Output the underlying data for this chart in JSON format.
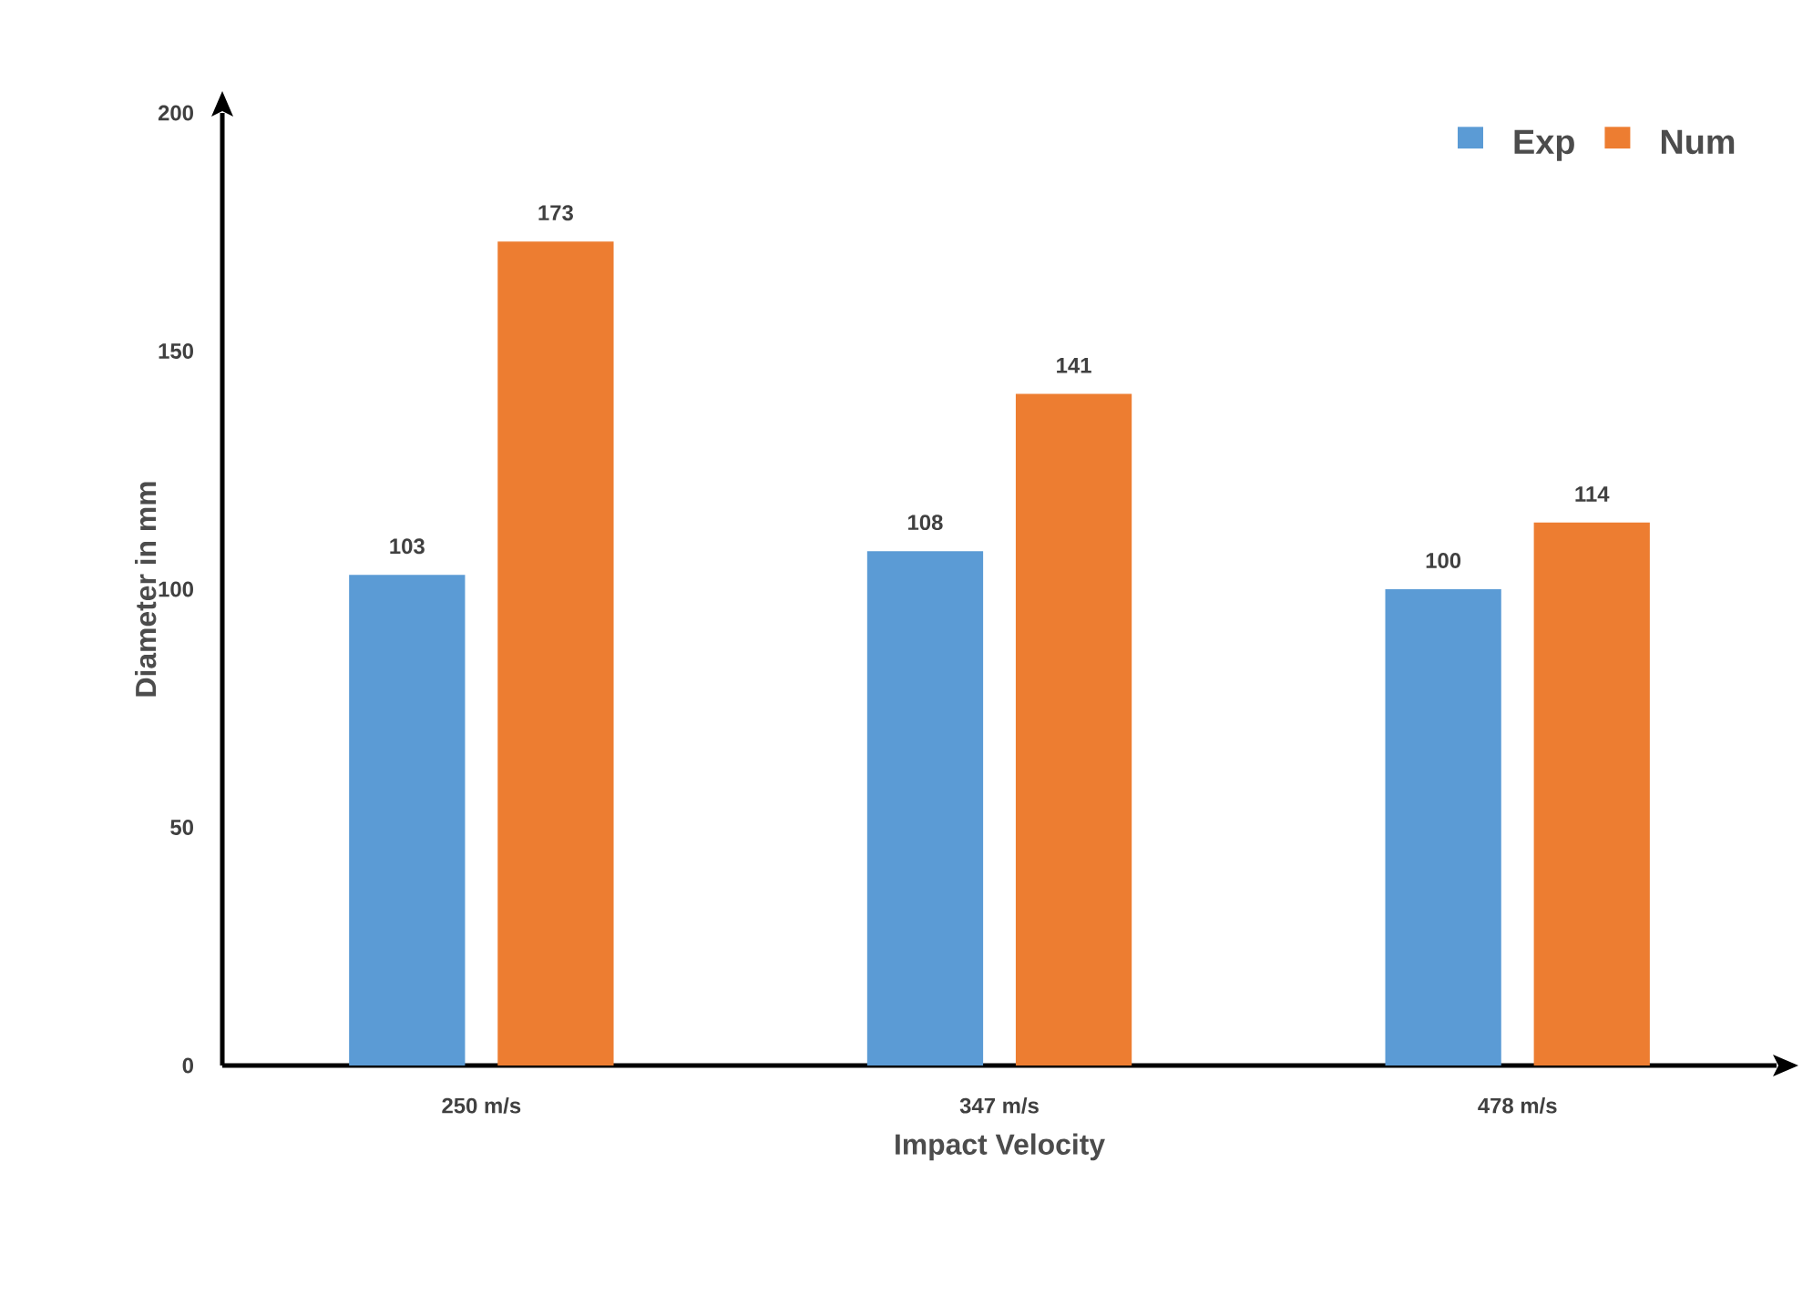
{
  "chart_data": {
    "type": "bar",
    "xlabel": "Impact Velocity",
    "ylabel": "Diameter in mm",
    "categories": [
      "250 m/s",
      "347 m/s",
      "478 m/s"
    ],
    "series": [
      {
        "name": "Exp",
        "color": "#5b9bd5",
        "values": [
          103,
          108,
          100
        ]
      },
      {
        "name": "Num",
        "color": "#ed7d31",
        "values": [
          173,
          141,
          114
        ]
      }
    ],
    "ylim": [
      0,
      200
    ],
    "yticks": [
      0,
      50,
      100,
      150,
      200
    ],
    "grid": false,
    "legend": "top right",
    "data_labels": true
  }
}
